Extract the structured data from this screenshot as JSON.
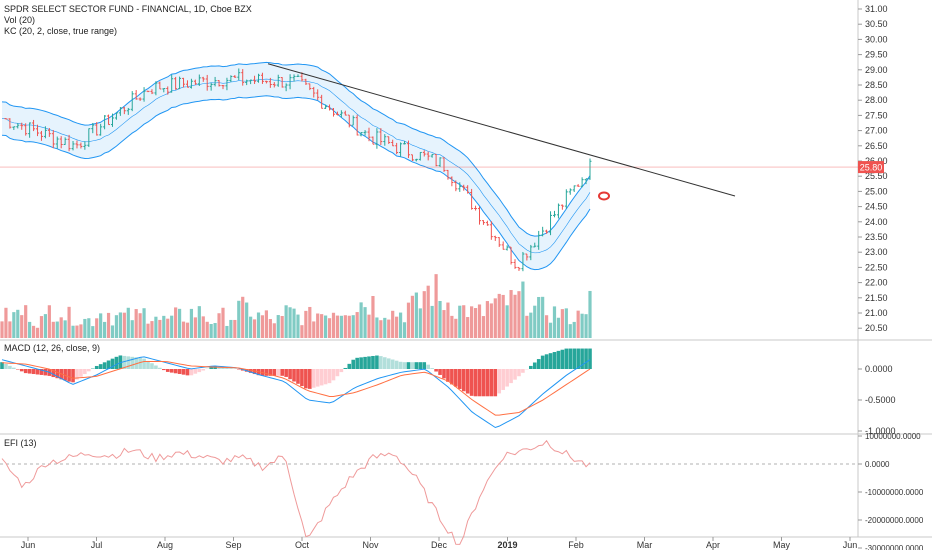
{
  "header": {
    "title": "SPDR SELECT SECTOR FUND - FINANCIAL, 1D, Cboe BZX",
    "vol_label": "Vol (20)",
    "kc_label": "KC (20, 2, close, true range)"
  },
  "macd_panel": {
    "label": "MACD (12, 26, close, 9)"
  },
  "efi_panel": {
    "label": "EFI (13)"
  },
  "price_axis": {
    "ticks": [
      "31.00",
      "30.50",
      "30.00",
      "29.50",
      "29.00",
      "28.50",
      "28.00",
      "27.50",
      "27.00",
      "26.50",
      "26.00",
      "25.50",
      "25.00",
      "24.50",
      "24.00",
      "23.50",
      "23.00",
      "22.50",
      "22.00",
      "21.50",
      "21.00",
      "20.50"
    ],
    "current_price": "25.80"
  },
  "macd_axis": {
    "ticks": [
      "0.0000",
      "-0.5000",
      "-1.0000"
    ]
  },
  "efi_axis": {
    "ticks": [
      "10000000.0000",
      "0.0000",
      "-10000000.0000",
      "-20000000.0000",
      "-30000000.0000"
    ]
  },
  "time_axis": {
    "labels": [
      "Jun",
      "Jul",
      "Aug",
      "Sep",
      "Oct",
      "Nov",
      "Dec",
      "2019",
      "Feb",
      "Mar",
      "Apr",
      "May",
      "Jun"
    ]
  },
  "colors": {
    "up": "#26a69a",
    "down": "#ef5350",
    "kc_line": "#2196f3",
    "kc_fill": "#e3f2fd",
    "macd_signal": "#ff7043",
    "efi": "#ef9a9a",
    "trendline": "#333333",
    "price_line": "#ef5350"
  },
  "chart_data": [
    {
      "type": "candlestick",
      "title": "SPDR SELECT SECTOR FUND - FINANCIAL, 1D, Cboe BZX",
      "ylim": [
        20.25,
        31.2
      ],
      "x": [
        "Jun",
        "Jul",
        "Aug",
        "Sep",
        "Oct",
        "Nov",
        "Dec",
        "2019",
        "Feb"
      ],
      "close_by_month": [
        27.4,
        26.5,
        28.4,
        28.7,
        28.6,
        26.8,
        25.9,
        22.6,
        25.8
      ],
      "last_close": 25.8,
      "keltner_channel": {
        "period": 20,
        "multiplier": 2
      },
      "trendline": {
        "from": [
          "Sep",
          29.1
        ],
        "to": [
          "Apr",
          24.8
        ]
      },
      "annotation": "red ellipse near 24.9"
    },
    {
      "type": "bar",
      "title": "Vol (20)",
      "series": [
        {
          "name": "Vol",
          "values": [
            0.6,
            0.7,
            0.5,
            0.8,
            0.6,
            0.5,
            0.7,
            0.6,
            0.6,
            0.7,
            0.5,
            0.6,
            0.7,
            0.5,
            0.6,
            0.8,
            0.6,
            0.5,
            0.7,
            0.6,
            0.7,
            0.8,
            0.9,
            1.0,
            0.8,
            0.7,
            0.9,
            1.3,
            1.0,
            0.8,
            0.7,
            0.9,
            1.0,
            1.1,
            0.8,
            0.7,
            0.6,
            1.0
          ]
        }
      ]
    },
    {
      "type": "histogram",
      "title": "MACD (12, 26, close, 9)",
      "ylim": [
        -1.0,
        0.4
      ],
      "series": [
        {
          "name": "MACD",
          "values": [
            0.15,
            0.05,
            -0.05,
            -0.25,
            -0.1,
            0.1,
            0.2,
            0.1,
            0.0,
            0.05,
            0.02,
            -0.1,
            -0.2,
            -0.5,
            -0.55,
            -0.3,
            -0.15,
            -0.05,
            0.0,
            -0.3,
            -0.7,
            -0.95,
            -0.75,
            -0.4,
            -0.1,
            0.15
          ]
        },
        {
          "name": "Signal",
          "values": [
            0.1,
            0.08,
            0.0,
            -0.15,
            -0.12,
            0.0,
            0.12,
            0.12,
            0.05,
            0.03,
            0.02,
            -0.05,
            -0.15,
            -0.35,
            -0.45,
            -0.38,
            -0.25,
            -0.1,
            -0.05,
            -0.2,
            -0.5,
            -0.75,
            -0.7,
            -0.5,
            -0.25,
            0.0
          ]
        }
      ]
    },
    {
      "type": "line",
      "title": "EFI (13)",
      "ylim": [
        -32000000,
        12000000
      ],
      "series": [
        {
          "name": "EFI",
          "values": [
            1000000,
            -8000000,
            500000,
            2000000,
            4000000,
            3000000,
            5000000,
            2000000,
            4000000,
            3000000,
            1000000,
            2000000,
            -1000000,
            3000000,
            -28000000,
            -15000000,
            -5000000,
            2000000,
            4000000,
            -5000000,
            -18000000,
            -29000000,
            -10000000,
            3000000,
            5000000,
            8000000,
            3000000,
            -1000000
          ]
        }
      ]
    }
  ]
}
